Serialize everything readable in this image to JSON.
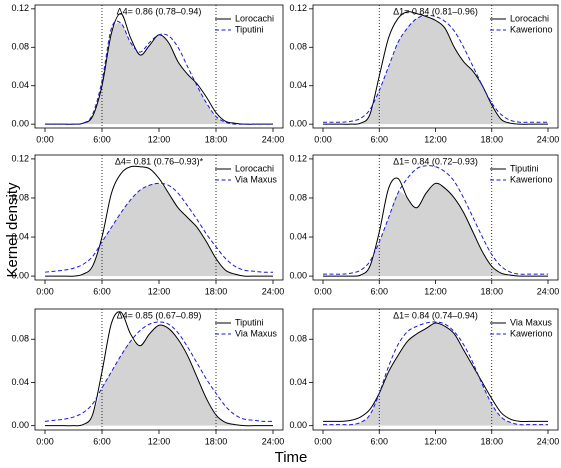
{
  "ylabel": "Kernel density",
  "xlabel": "Time",
  "chart_data": [
    {
      "type": "line",
      "annotation": "Δ4= 0.86 (0.78–0.94)",
      "legend": "top-right",
      "grid": false,
      "x": [
        0,
        1,
        2,
        3,
        4,
        5,
        6,
        7,
        8,
        9,
        10,
        11,
        12,
        13,
        14,
        15,
        16,
        17,
        18,
        19,
        20,
        21,
        22,
        23,
        24
      ],
      "xlim": [
        0,
        24
      ],
      "xticks": [
        {
          "value": 0,
          "label": "0:00"
        },
        {
          "value": 6,
          "label": "6:00"
        },
        {
          "value": 12,
          "label": "12:00"
        },
        {
          "value": 18,
          "label": "18:00"
        },
        {
          "value": 24,
          "label": "24:00"
        }
      ],
      "ylim": [
        -0.004,
        0.124
      ],
      "yticks": [
        {
          "value": 0,
          "label": "0.00"
        },
        {
          "value": 0.04,
          "label": "0.04"
        },
        {
          "value": 0.08,
          "label": "0.08"
        },
        {
          "value": 0.12,
          "label": "0.12"
        }
      ],
      "vlines": [
        6,
        18
      ],
      "overlap_color": "#d3d3d3",
      "series": [
        {
          "name": "Lorocachi",
          "color": "#000000",
          "dash": false,
          "values": [
            0,
            0,
            0,
            0,
            0.001,
            0.008,
            0.04,
            0.095,
            0.115,
            0.09,
            0.072,
            0.082,
            0.093,
            0.085,
            0.065,
            0.052,
            0.042,
            0.028,
            0.012,
            0.003,
            0.001,
            0,
            0,
            0,
            0
          ]
        },
        {
          "name": "Tiputini",
          "color": "#1a1ad6",
          "dash": true,
          "values": [
            0,
            0,
            0,
            0,
            0.001,
            0.01,
            0.045,
            0.1,
            0.105,
            0.085,
            0.075,
            0.085,
            0.093,
            0.092,
            0.08,
            0.06,
            0.04,
            0.022,
            0.008,
            0.002,
            0,
            0,
            0,
            0,
            0
          ]
        }
      ]
    },
    {
      "type": "line",
      "annotation": "Δ1= 0.84 (0.81–0.96)",
      "legend": "top-right",
      "grid": false,
      "x": [
        0,
        1,
        2,
        3,
        4,
        5,
        6,
        7,
        8,
        9,
        10,
        11,
        12,
        13,
        14,
        15,
        16,
        17,
        18,
        19,
        20,
        21,
        22,
        23,
        24
      ],
      "xlim": [
        0,
        24
      ],
      "xticks": [
        {
          "value": 0,
          "label": "0:00"
        },
        {
          "value": 6,
          "label": "6:00"
        },
        {
          "value": 12,
          "label": "12:00"
        },
        {
          "value": 18,
          "label": "18:00"
        },
        {
          "value": 24,
          "label": "24:00"
        }
      ],
      "ylim": [
        -0.004,
        0.124
      ],
      "yticks": [
        {
          "value": 0,
          "label": "0.00"
        },
        {
          "value": 0.04,
          "label": "0.04"
        },
        {
          "value": 0.08,
          "label": "0.08"
        },
        {
          "value": 0.12,
          "label": "0.12"
        }
      ],
      "vlines": [
        6,
        18
      ],
      "overlap_color": "#d3d3d3",
      "series": [
        {
          "name": "Lorocachi",
          "color": "#000000",
          "dash": false,
          "values": [
            0,
            0,
            0,
            0,
            0.001,
            0.01,
            0.05,
            0.09,
            0.11,
            0.117,
            0.115,
            0.112,
            0.108,
            0.1,
            0.08,
            0.065,
            0.055,
            0.04,
            0.02,
            0.005,
            0.001,
            0,
            0,
            0,
            0
          ]
        },
        {
          "name": "Kaweriono",
          "color": "#1a1ad6",
          "dash": true,
          "values": [
            0.002,
            0.002,
            0.002,
            0.003,
            0.006,
            0.015,
            0.035,
            0.06,
            0.085,
            0.1,
            0.11,
            0.113,
            0.112,
            0.107,
            0.097,
            0.08,
            0.06,
            0.04,
            0.022,
            0.01,
            0.004,
            0.002,
            0.002,
            0.002,
            0.002
          ]
        }
      ]
    },
    {
      "type": "line",
      "annotation": "Δ4= 0.81 (0.76–0.93)*",
      "legend": "top-right",
      "grid": false,
      "x": [
        0,
        1,
        2,
        3,
        4,
        5,
        6,
        7,
        8,
        9,
        10,
        11,
        12,
        13,
        14,
        15,
        16,
        17,
        18,
        19,
        20,
        21,
        22,
        23,
        24
      ],
      "xlim": [
        0,
        24
      ],
      "xticks": [
        {
          "value": 0,
          "label": "0:00"
        },
        {
          "value": 6,
          "label": "6:00"
        },
        {
          "value": 12,
          "label": "12:00"
        },
        {
          "value": 18,
          "label": "18:00"
        },
        {
          "value": 24,
          "label": "24:00"
        }
      ],
      "ylim": [
        -0.004,
        0.124
      ],
      "yticks": [
        {
          "value": 0,
          "label": "0.00"
        },
        {
          "value": 0.04,
          "label": "0.04"
        },
        {
          "value": 0.08,
          "label": "0.08"
        },
        {
          "value": 0.12,
          "label": "0.12"
        }
      ],
      "vlines": [
        6,
        18
      ],
      "overlap_color": "#d3d3d3",
      "series": [
        {
          "name": "Lorocachi",
          "color": "#000000",
          "dash": false,
          "values": [
            0,
            0,
            0,
            0,
            0.002,
            0.01,
            0.04,
            0.085,
            0.105,
            0.112,
            0.112,
            0.11,
            0.1,
            0.085,
            0.07,
            0.06,
            0.05,
            0.035,
            0.018,
            0.006,
            0.002,
            0,
            0,
            0,
            0
          ]
        },
        {
          "name": "Via Maxus",
          "color": "#1a1ad6",
          "dash": true,
          "values": [
            0.004,
            0.005,
            0.006,
            0.008,
            0.012,
            0.02,
            0.035,
            0.05,
            0.065,
            0.078,
            0.088,
            0.093,
            0.095,
            0.093,
            0.085,
            0.072,
            0.058,
            0.043,
            0.03,
            0.018,
            0.01,
            0.006,
            0.005,
            0.004,
            0.004
          ]
        }
      ]
    },
    {
      "type": "line",
      "annotation": "Δ1= 0.84 (0.72–0.93)",
      "legend": "top-right",
      "grid": false,
      "x": [
        0,
        1,
        2,
        3,
        4,
        5,
        6,
        7,
        8,
        9,
        10,
        11,
        12,
        13,
        14,
        15,
        16,
        17,
        18,
        19,
        20,
        21,
        22,
        23,
        24
      ],
      "xlim": [
        0,
        24
      ],
      "xticks": [
        {
          "value": 0,
          "label": "0:00"
        },
        {
          "value": 6,
          "label": "6:00"
        },
        {
          "value": 12,
          "label": "12:00"
        },
        {
          "value": 18,
          "label": "18:00"
        },
        {
          "value": 24,
          "label": "24:00"
        }
      ],
      "ylim": [
        -0.004,
        0.124
      ],
      "yticks": [
        {
          "value": 0,
          "label": "0.00"
        },
        {
          "value": 0.04,
          "label": "0.04"
        },
        {
          "value": 0.08,
          "label": "0.08"
        },
        {
          "value": 0.12,
          "label": "0.12"
        }
      ],
      "vlines": [
        6,
        18
      ],
      "overlap_color": "#d3d3d3",
      "series": [
        {
          "name": "Tiputini",
          "color": "#000000",
          "dash": false,
          "values": [
            0,
            0,
            0,
            0,
            0.001,
            0.01,
            0.045,
            0.09,
            0.1,
            0.08,
            0.07,
            0.085,
            0.095,
            0.09,
            0.08,
            0.065,
            0.045,
            0.025,
            0.01,
            0.003,
            0.001,
            0,
            0,
            0,
            0
          ]
        },
        {
          "name": "Kaweriono",
          "color": "#1a1ad6",
          "dash": true,
          "values": [
            0.002,
            0.002,
            0.002,
            0.003,
            0.006,
            0.015,
            0.035,
            0.06,
            0.085,
            0.1,
            0.11,
            0.113,
            0.112,
            0.107,
            0.097,
            0.08,
            0.06,
            0.04,
            0.022,
            0.01,
            0.004,
            0.002,
            0.002,
            0.002,
            0.002
          ]
        }
      ]
    },
    {
      "type": "line",
      "annotation": "Δ4= 0.85 (0.67–0.89)",
      "legend": "top-right",
      "grid": false,
      "x": [
        0,
        1,
        2,
        3,
        4,
        5,
        6,
        7,
        8,
        9,
        10,
        11,
        12,
        13,
        14,
        15,
        16,
        17,
        18,
        19,
        20,
        21,
        22,
        23,
        24
      ],
      "xlim": [
        0,
        24
      ],
      "xticks": [
        {
          "value": 0,
          "label": "0:00"
        },
        {
          "value": 6,
          "label": "6:00"
        },
        {
          "value": 12,
          "label": "12:00"
        },
        {
          "value": 18,
          "label": "18:00"
        },
        {
          "value": 24,
          "label": "24:00"
        }
      ],
      "ylim": [
        -0.004,
        0.108
      ],
      "yticks": [
        {
          "value": 0,
          "label": "0.00"
        },
        {
          "value": 0.04,
          "label": "0.04"
        },
        {
          "value": 0.08,
          "label": "0.08"
        }
      ],
      "vlines": [
        6,
        18
      ],
      "overlap_color": "#d3d3d3",
      "series": [
        {
          "name": "Tiputini",
          "color": "#000000",
          "dash": false,
          "values": [
            0,
            0,
            0,
            0,
            0.001,
            0.01,
            0.05,
            0.095,
            0.105,
            0.085,
            0.074,
            0.085,
            0.093,
            0.09,
            0.08,
            0.065,
            0.045,
            0.025,
            0.01,
            0.003,
            0.001,
            0,
            0,
            0,
            0
          ]
        },
        {
          "name": "Via Maxus",
          "color": "#1a1ad6",
          "dash": true,
          "values": [
            0.004,
            0.005,
            0.006,
            0.008,
            0.012,
            0.02,
            0.035,
            0.05,
            0.065,
            0.078,
            0.088,
            0.094,
            0.096,
            0.094,
            0.086,
            0.073,
            0.058,
            0.043,
            0.03,
            0.018,
            0.01,
            0.006,
            0.005,
            0.004,
            0.004
          ]
        }
      ]
    },
    {
      "type": "line",
      "annotation": "Δ1= 0.84 (0.74–0.94)",
      "legend": "top-right",
      "grid": false,
      "x": [
        0,
        1,
        2,
        3,
        4,
        5,
        6,
        7,
        8,
        9,
        10,
        11,
        12,
        13,
        14,
        15,
        16,
        17,
        18,
        19,
        20,
        21,
        22,
        23,
        24
      ],
      "xlim": [
        0,
        24
      ],
      "xticks": [
        {
          "value": 0,
          "label": "0:00"
        },
        {
          "value": 6,
          "label": "6:00"
        },
        {
          "value": 12,
          "label": "12:00"
        },
        {
          "value": 18,
          "label": "18:00"
        },
        {
          "value": 24,
          "label": "24:00"
        }
      ],
      "ylim": [
        -0.004,
        0.108
      ],
      "yticks": [
        {
          "value": 0,
          "label": "0.00"
        },
        {
          "value": 0.04,
          "label": "0.04"
        },
        {
          "value": 0.08,
          "label": "0.08"
        }
      ],
      "vlines": [
        6,
        18
      ],
      "overlap_color": "#d3d3d3",
      "series": [
        {
          "name": "Via Maxus",
          "color": "#000000",
          "dash": false,
          "values": [
            0.004,
            0.004,
            0.004,
            0.005,
            0.008,
            0.015,
            0.03,
            0.05,
            0.065,
            0.078,
            0.085,
            0.09,
            0.095,
            0.092,
            0.085,
            0.07,
            0.055,
            0.04,
            0.025,
            0.012,
            0.006,
            0.004,
            0.004,
            0.004,
            0.004
          ]
        },
        {
          "name": "Kaweriono",
          "color": "#1a1ad6",
          "dash": true,
          "values": [
            0.001,
            0.001,
            0.001,
            0.001,
            0.003,
            0.01,
            0.03,
            0.055,
            0.075,
            0.087,
            0.092,
            0.095,
            0.096,
            0.094,
            0.087,
            0.075,
            0.058,
            0.038,
            0.02,
            0.008,
            0.003,
            0.001,
            0.001,
            0.001,
            0.001
          ]
        }
      ]
    }
  ]
}
